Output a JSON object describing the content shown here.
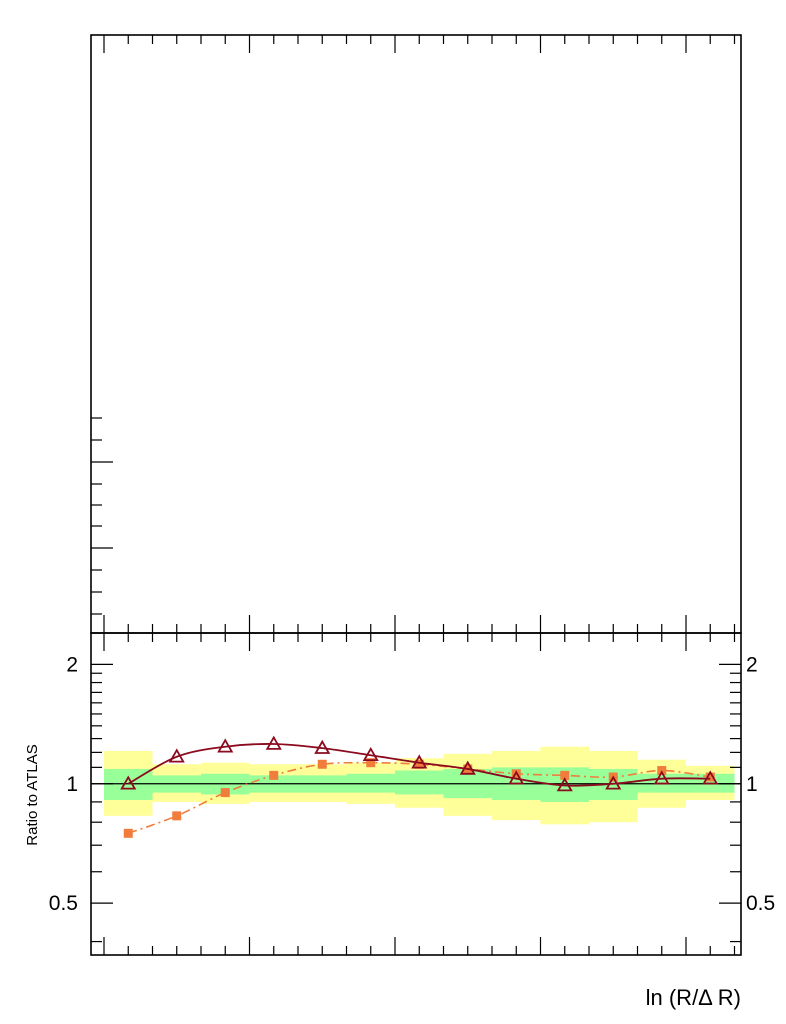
{
  "chart_data": [
    {
      "type": "line",
      "panel": "main",
      "title": "",
      "xlabel": "",
      "ylabel": "",
      "series": []
    },
    {
      "type": "line",
      "panel": "ratio",
      "title": "",
      "xlabel": "ln (R/Δ R)",
      "ylabel": "Ratio to ATLAS",
      "y_scale": "log",
      "ylim": [
        0.37,
        2.4
      ],
      "y_tick_labels": [
        "0.5",
        "1",
        "2"
      ],
      "y_tick_values": [
        0.5,
        1,
        2
      ],
      "grid": false,
      "reference_line": 1,
      "colors": {
        "inner_band": "#99ff99",
        "outer_band": "#ffff99",
        "series_triangles": "#8b0a1e",
        "series_squares": "#f07d3c",
        "axis": "#000000"
      },
      "bands": {
        "bin_index_edges": [
          0,
          1,
          2,
          3,
          4,
          5,
          6,
          7,
          8,
          9,
          10,
          11,
          12,
          13
        ],
        "inner_low": [
          0.91,
          0.95,
          0.94,
          0.95,
          0.95,
          0.95,
          0.94,
          0.92,
          0.91,
          0.9,
          0.91,
          0.95,
          0.95
        ],
        "inner_high": [
          1.09,
          1.05,
          1.06,
          1.05,
          1.05,
          1.06,
          1.08,
          1.09,
          1.1,
          1.1,
          1.09,
          1.06,
          1.06
        ],
        "outer_low": [
          0.83,
          0.9,
          0.89,
          0.9,
          0.9,
          0.89,
          0.87,
          0.83,
          0.81,
          0.79,
          0.8,
          0.87,
          0.91
        ],
        "outer_high": [
          1.21,
          1.12,
          1.13,
          1.12,
          1.12,
          1.13,
          1.16,
          1.19,
          1.21,
          1.24,
          1.21,
          1.15,
          1.11
        ]
      },
      "series": [
        {
          "marker": "open-triangle",
          "line": "solid",
          "x": [
            0.5,
            1.5,
            2.5,
            3.5,
            4.5,
            5.5,
            6.5,
            7.5,
            8.5,
            9.5,
            10.5,
            11.5,
            12.5
          ],
          "values": [
            1.0,
            1.17,
            1.24,
            1.26,
            1.23,
            1.18,
            1.13,
            1.09,
            1.03,
            0.99,
            1.0,
            1.03,
            1.03
          ]
        },
        {
          "marker": "filled-square",
          "line": "dash-dot",
          "x": [
            0.5,
            1.5,
            2.5,
            3.5,
            4.5,
            5.5,
            6.5,
            7.5,
            8.5,
            9.5,
            10.5,
            11.5,
            12.5
          ],
          "values": [
            0.75,
            0.83,
            0.95,
            1.05,
            1.12,
            1.13,
            1.12,
            1.09,
            1.06,
            1.05,
            1.04,
            1.08,
            1.04
          ]
        }
      ]
    }
  ]
}
